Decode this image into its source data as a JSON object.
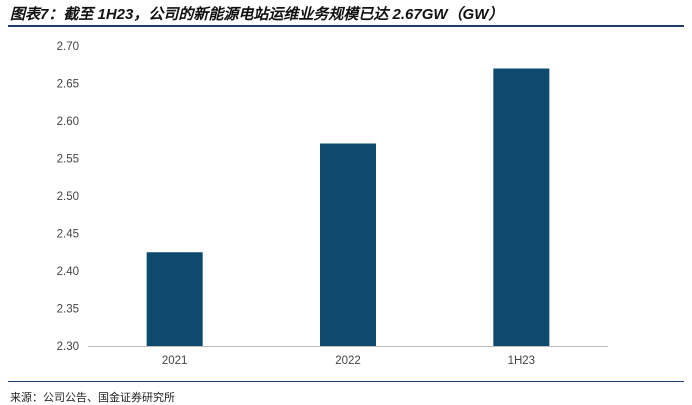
{
  "title": "图表7：截至 1H23，公司的新能源电站运维业务规模已达 2.67GW（GW）",
  "source": "来源：公司公告、国金证券研究所",
  "colors": {
    "bar": "#0e4a6e",
    "axis": "#bfbfbf",
    "rule": "#1f3c6e"
  },
  "chart_data": {
    "type": "bar",
    "categories": [
      "2021",
      "2022",
      "1H23"
    ],
    "values": [
      2.425,
      2.57,
      2.67
    ],
    "ylim": [
      2.3,
      2.7
    ],
    "yticks": [
      "2.70",
      "2.65",
      "2.60",
      "2.55",
      "2.50",
      "2.45",
      "2.40",
      "2.35",
      "2.30"
    ],
    "xlabel": "",
    "ylabel": "",
    "grid": false,
    "legend": false
  }
}
